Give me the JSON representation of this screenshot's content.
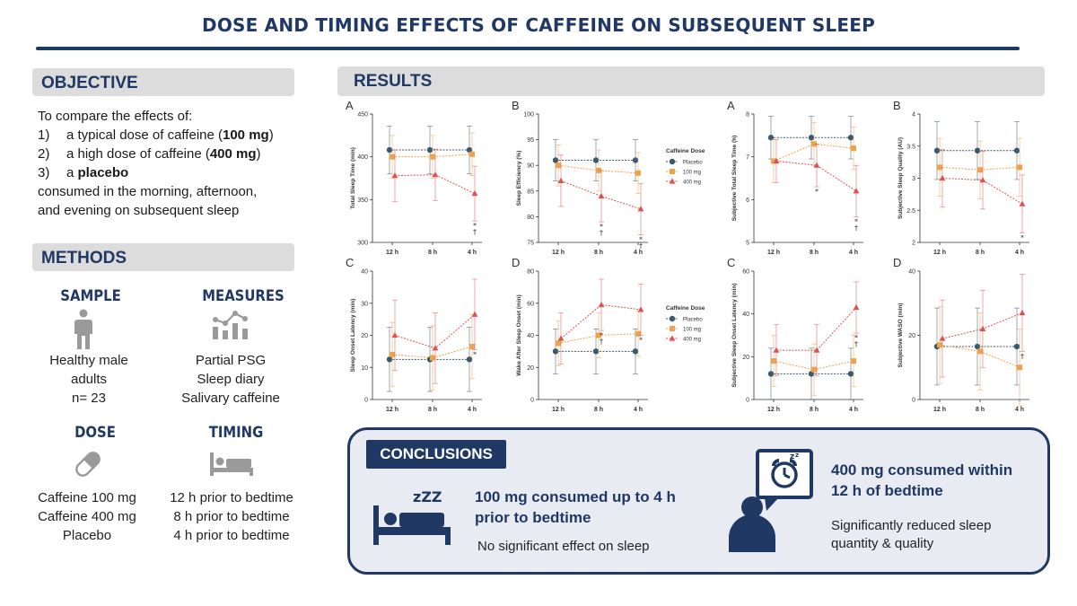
{
  "title": "DOSE AND TIMING EFFECTS OF CAFFEINE ON SUBSEQUENT SLEEP",
  "colors": {
    "navy": "#1f3864",
    "placebo": "#3a5a6e",
    "dose100": "#f0a24a",
    "dose400": "#d9534f"
  },
  "objective": {
    "heading": "OBJECTIVE",
    "intro": "To compare the effects of:",
    "items": [
      {
        "num": "1)",
        "pre": "a typical dose of caffeine (",
        "bold": "100 mg",
        "post": ")"
      },
      {
        "num": "2)",
        "pre": "a high dose of caffeine (",
        "bold": "400 mg",
        "post": ")"
      },
      {
        "num": "3)",
        "pre": "a ",
        "bold": "placebo",
        "post": ""
      }
    ],
    "outro_1": "consumed in the morning, afternoon,",
    "outro_2": "and evening on subsequent sleep"
  },
  "methods": {
    "heading": "METHODS",
    "sample": {
      "title": "SAMPLE",
      "lines": [
        "Healthy male",
        "adults",
        "n= 23"
      ],
      "icon": "person-icon"
    },
    "measures": {
      "title": "MEASURES",
      "lines": [
        "Partial PSG",
        "Sleep diary",
        "Salivary caffeine"
      ],
      "icon": "chart-icon"
    },
    "dose": {
      "title": "DOSE",
      "lines": [
        "Caffeine 100 mg",
        "Caffeine 400 mg",
        "Placebo"
      ],
      "icon": "capsule-icon"
    },
    "timing": {
      "title": "TIMING",
      "lines": [
        "12 h prior to bedtime",
        "8 h prior to bedtime",
        "4 h prior to bedtime"
      ],
      "icon": "bed-icon"
    }
  },
  "results": {
    "heading": "RESULTS"
  },
  "legend": {
    "title": "Caffeine Dose",
    "items": [
      "Placebo",
      "100 mg",
      "400 mg"
    ]
  },
  "chart_data": [
    {
      "type": "line",
      "panel": "A",
      "ylabel": "Total Sleep Time (min)",
      "categories": [
        "12 h",
        "8 h",
        "4 h"
      ],
      "ylim": [
        300,
        450
      ],
      "yticks": [
        300,
        350,
        400,
        450
      ],
      "series": [
        {
          "name": "Placebo",
          "values": [
            408,
            408,
            408
          ],
          "err": [
            28,
            28,
            28
          ]
        },
        {
          "name": "100 mg",
          "values": [
            400,
            400,
            403
          ],
          "err": [
            25,
            25,
            25
          ]
        },
        {
          "name": "400 mg",
          "values": [
            378,
            379,
            357
          ],
          "err": [
            30,
            30,
            32
          ]
        }
      ],
      "annotations": [
        {
          "x": 2,
          "text": "*\n†"
        }
      ]
    },
    {
      "type": "line",
      "panel": "B",
      "ylabel": "Sleep Efficiency (%)",
      "categories": [
        "12 h",
        "8 h",
        "4 h"
      ],
      "ylim": [
        75,
        100
      ],
      "yticks": [
        75,
        80,
        85,
        90,
        95,
        100
      ],
      "series": [
        {
          "name": "Placebo",
          "values": [
            91,
            91,
            91
          ],
          "err": [
            4,
            4,
            4
          ]
        },
        {
          "name": "100 mg",
          "values": [
            90,
            89,
            88.5
          ],
          "err": [
            4,
            4,
            4
          ]
        },
        {
          "name": "400 mg",
          "values": [
            87,
            84,
            81.5
          ],
          "err": [
            5,
            5,
            5
          ]
        }
      ],
      "annotations": [
        {
          "x": 1,
          "text": "*\n†"
        },
        {
          "x": 2,
          "text": "*\n†"
        }
      ]
    },
    {
      "type": "line",
      "panel": "A",
      "ylabel": "Subjective Total Sleep Time (h)",
      "categories": [
        "12 h",
        "8 h",
        "4 h"
      ],
      "ylim": [
        5,
        8
      ],
      "yticks": [
        5,
        6,
        7,
        8
      ],
      "series": [
        {
          "name": "Placebo",
          "values": [
            7.45,
            7.45,
            7.45
          ],
          "err": [
            0.5,
            0.5,
            0.5
          ]
        },
        {
          "name": "100 mg",
          "values": [
            6.9,
            7.3,
            7.2
          ],
          "err": [
            0.5,
            0.5,
            0.5
          ]
        },
        {
          "name": "400 mg",
          "values": [
            6.9,
            6.8,
            6.2
          ],
          "err": [
            0.5,
            0.5,
            0.6
          ]
        }
      ],
      "annotations": [
        {
          "x": 1,
          "text": "*"
        },
        {
          "x": 2,
          "text": "*\n†"
        }
      ]
    },
    {
      "type": "line",
      "panel": "B",
      "ylabel": "Subjective Sleep Quality (AU)",
      "categories": [
        "12 h",
        "8 h",
        "4 h"
      ],
      "ylim": [
        2.0,
        4.0
      ],
      "yticks": [
        2.0,
        2.5,
        3.0,
        3.5,
        4.0
      ],
      "series": [
        {
          "name": "Placebo",
          "values": [
            3.43,
            3.43,
            3.43
          ],
          "err": [
            0.45,
            0.45,
            0.45
          ]
        },
        {
          "name": "100 mg",
          "values": [
            3.17,
            3.13,
            3.17
          ],
          "err": [
            0.45,
            0.45,
            0.45
          ]
        },
        {
          "name": "400 mg",
          "values": [
            3.0,
            2.97,
            2.6
          ],
          "err": [
            0.45,
            0.45,
            0.45
          ]
        }
      ],
      "annotations": [
        {
          "x": 2,
          "text": "*"
        }
      ]
    },
    {
      "type": "line",
      "panel": "C",
      "ylabel": "Sleep Onset Latency (min)",
      "categories": [
        "12 h",
        "8 h",
        "4 h"
      ],
      "ylim": [
        0,
        40
      ],
      "yticks": [
        0,
        10,
        20,
        30,
        40
      ],
      "series": [
        {
          "name": "Placebo",
          "values": [
            12.5,
            12.5,
            12.5
          ],
          "err": [
            10,
            10,
            10
          ]
        },
        {
          "name": "100 mg",
          "values": [
            14,
            13,
            16.5
          ],
          "err": [
            10,
            10,
            10
          ]
        },
        {
          "name": "400 mg",
          "values": [
            20,
            16,
            26.5
          ],
          "err": [
            11,
            11,
            11
          ]
        }
      ],
      "annotations": [
        {
          "x": 2,
          "text": "*"
        }
      ]
    },
    {
      "type": "line",
      "panel": "D",
      "ylabel": "Wake After Sleep Onset (min)",
      "categories": [
        "12 h",
        "8 h",
        "4 h"
      ],
      "ylim": [
        0,
        80
      ],
      "yticks": [
        0,
        20,
        40,
        60,
        80
      ],
      "series": [
        {
          "name": "Placebo",
          "values": [
            30,
            30,
            30
          ],
          "err": [
            14,
            14,
            14
          ]
        },
        {
          "name": "100 mg",
          "values": [
            35,
            40,
            41
          ],
          "err": [
            14,
            14,
            14
          ]
        },
        {
          "name": "400 mg",
          "values": [
            38,
            59,
            56
          ],
          "err": [
            16,
            16,
            16
          ]
        }
      ],
      "annotations": [
        {
          "x": 1,
          "text": "*\n†"
        },
        {
          "x": 2,
          "text": "*"
        }
      ]
    },
    {
      "type": "line",
      "panel": "C",
      "ylabel": "Subjective Sleep Onset Latency (min)",
      "categories": [
        "12 h",
        "8 h",
        "4 h"
      ],
      "ylim": [
        0,
        60
      ],
      "yticks": [
        0,
        20,
        40,
        60
      ],
      "series": [
        {
          "name": "Placebo",
          "values": [
            12,
            12,
            12
          ],
          "err": [
            12,
            12,
            12
          ]
        },
        {
          "name": "100 mg",
          "values": [
            18,
            14,
            18
          ],
          "err": [
            12,
            12,
            12
          ]
        },
        {
          "name": "400 mg",
          "values": [
            23,
            23,
            43
          ],
          "err": [
            12,
            12,
            12
          ]
        }
      ],
      "annotations": [
        {
          "x": 2,
          "text": "*\n†"
        }
      ]
    },
    {
      "type": "line",
      "panel": "D",
      "ylabel": "Subjective WASO (min)",
      "categories": [
        "12 h",
        "8 h",
        "4 h"
      ],
      "ylim": [
        0,
        40
      ],
      "yticks": [
        0,
        20,
        40
      ],
      "series": [
        {
          "name": "Placebo",
          "values": [
            16.5,
            16.5,
            16.5
          ],
          "err": [
            12,
            12,
            12
          ]
        },
        {
          "name": "100 mg",
          "values": [
            17,
            15,
            10
          ],
          "err": [
            12,
            12,
            12
          ]
        },
        {
          "name": "400 mg",
          "values": [
            19,
            22,
            27
          ],
          "err": [
            12,
            12,
            12
          ]
        }
      ],
      "annotations": [
        {
          "x": 2,
          "text": "†"
        }
      ]
    }
  ],
  "conclusions": {
    "heading": "CONCLUSIONS",
    "left": {
      "head_1": "100 mg consumed up to 4 h",
      "head_2": "prior to bedtime",
      "sub": "No significant effect on sleep",
      "icon": "sleeping-bed-icon",
      "zzz": "zZZ"
    },
    "right": {
      "head_1": "400 mg consumed within",
      "head_2": "12 h of bedtime",
      "sub_1": "Significantly reduced sleep",
      "sub_2": "quantity & quality",
      "icon": "alarm-clock-person-icon"
    }
  }
}
